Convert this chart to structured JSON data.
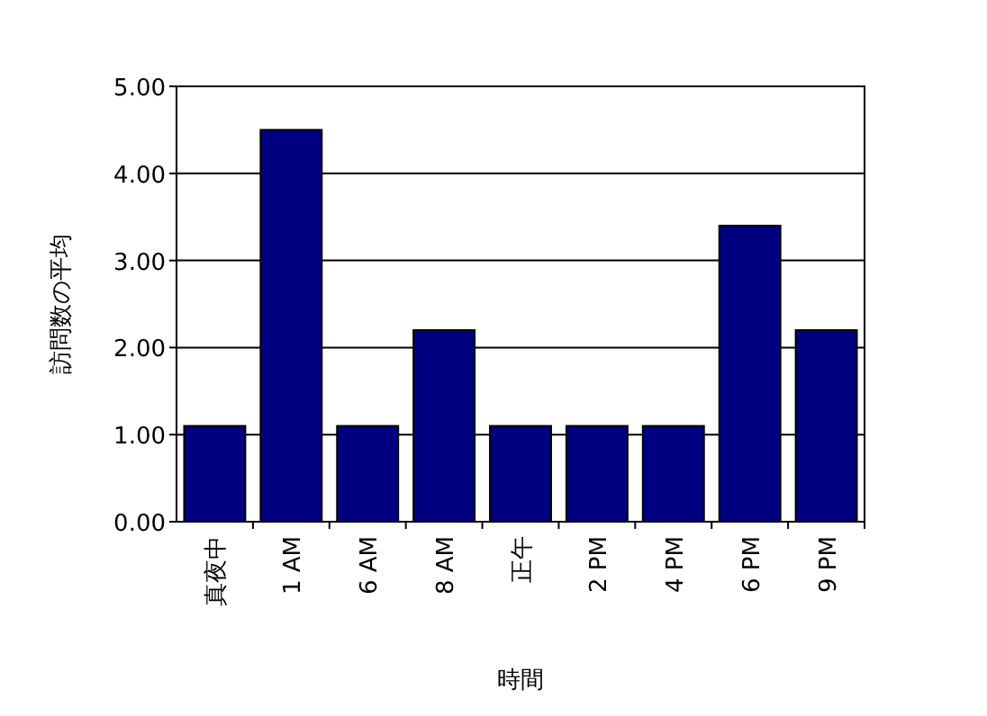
{
  "chart_data": {
    "type": "bar",
    "xlabel": "時間",
    "ylabel": "訪問数の平均",
    "categories": [
      "真夜中",
      "1 AM",
      "6 AM",
      "8 AM",
      "正午",
      "2 PM",
      "4 PM",
      "6 PM",
      "9 PM"
    ],
    "values": [
      1.1,
      4.5,
      1.1,
      2.2,
      1.1,
      1.1,
      1.1,
      3.4,
      2.2
    ],
    "color": "#000080",
    "ylim": [
      0,
      5
    ],
    "yticks": [
      {
        "value": 0,
        "label": "0.00"
      },
      {
        "value": 1,
        "label": "1.00"
      },
      {
        "value": 2,
        "label": "2.00"
      },
      {
        "value": 3,
        "label": "3.00"
      },
      {
        "value": 4,
        "label": "4.00"
      },
      {
        "value": 5,
        "label": "5.00"
      }
    ],
    "grid": "y"
  }
}
